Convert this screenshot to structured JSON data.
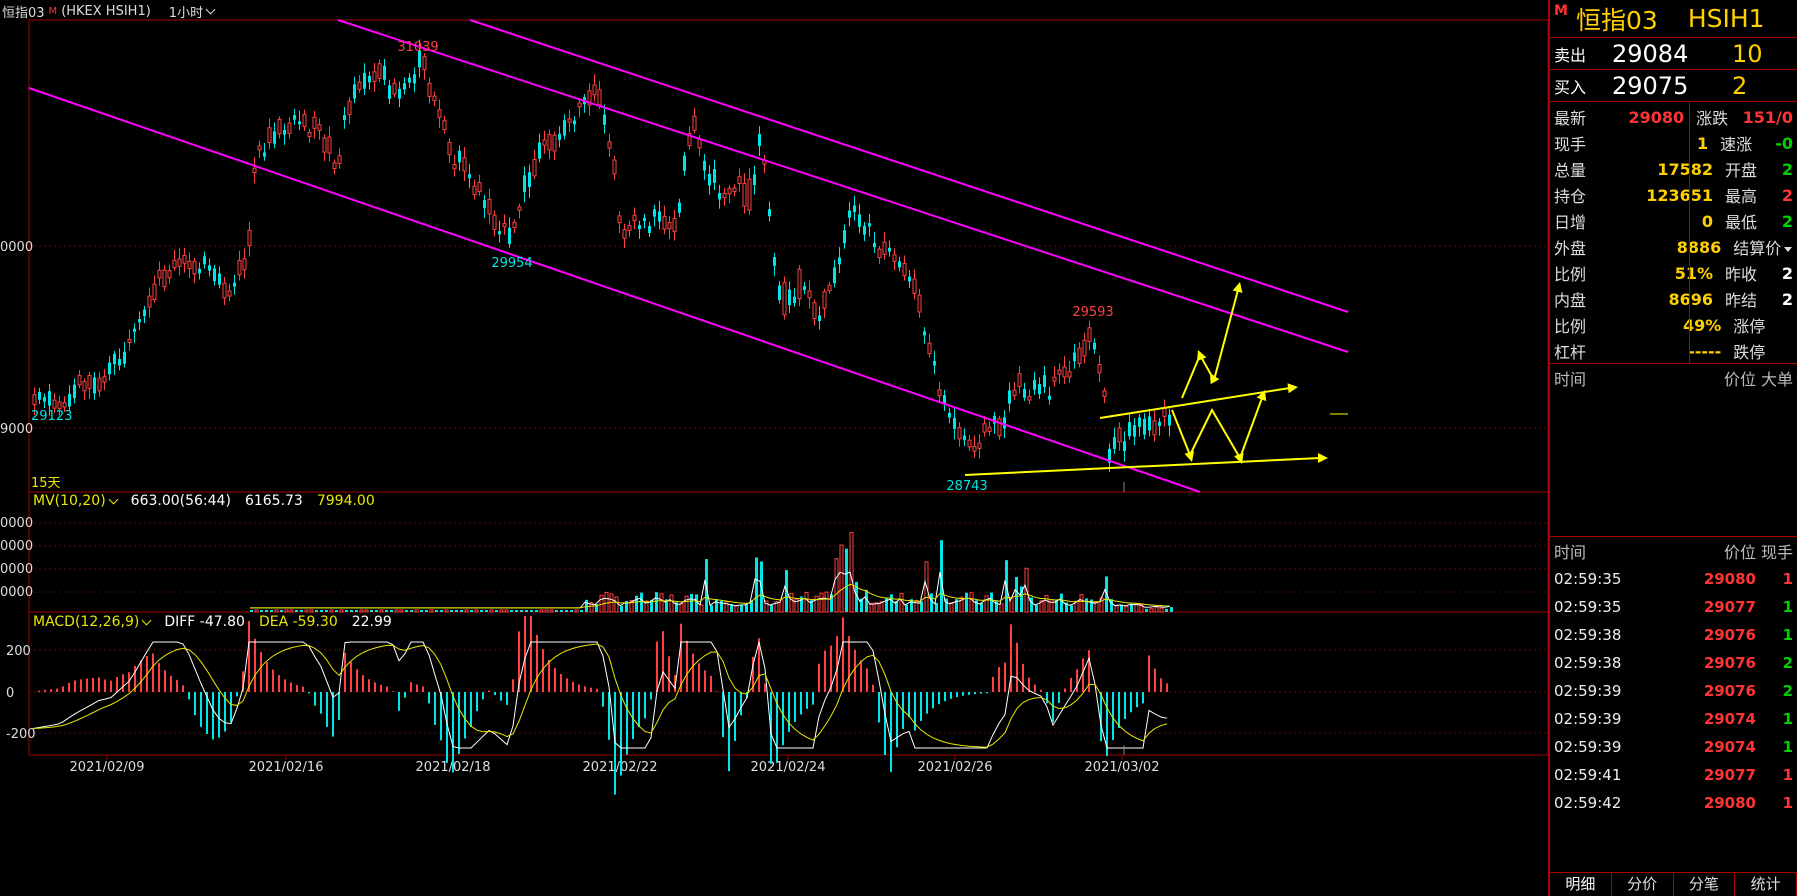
{
  "header": {
    "symbol": "恒指03",
    "mark": "M",
    "exchange_code": "(HKEX HSIH1)",
    "period": "1小时"
  },
  "chart_data": {
    "type": "candlestick",
    "x_labels": [
      "2021/02/09",
      "2021/02/16",
      "2021/02/18",
      "2021/02/22",
      "2021/02/24",
      "2021/02/26",
      "2021/03/02"
    ],
    "y_tick_labels": [
      "0000",
      "9000"
    ],
    "annotations": {
      "high_label": "31039",
      "low1_label": "29954",
      "right_high_label": "29593",
      "low2_label": "28743",
      "start_label": "29123"
    },
    "range_label": "15天",
    "volume": {
      "indicator": "MV(10,20)",
      "value1": "663.00(56:44)",
      "value2": "6165.73",
      "value3": "7994.00",
      "y_tick_labels": [
        "0000",
        "0000",
        "0000",
        "0000"
      ]
    },
    "macd": {
      "indicator": "MACD(12,26,9)",
      "diff_label": "DIFF",
      "diff": "-47.80",
      "dea_label": "DEA",
      "dea": "-59.30",
      "macd": "22.99",
      "y_tick_labels": [
        "200",
        "0",
        "-200"
      ]
    },
    "colors": {
      "up": "#ff4040",
      "down": "#00e5e5",
      "channel": "#ff00ff",
      "arrow": "#ffff00",
      "frame": "#a00000"
    }
  },
  "panel": {
    "mark": "M",
    "name": "恒指03",
    "code": "HSIH1",
    "ask": {
      "label": "卖出",
      "price": "29084",
      "qty": "10"
    },
    "bid": {
      "label": "买入",
      "price": "29075",
      "qty": "2"
    },
    "quote_rows": [
      {
        "l1": "最新",
        "v1": "29080",
        "c1": "red",
        "l2": "涨跌",
        "v2": "151/0",
        "c2": "red"
      },
      {
        "l1": "现手",
        "v1": "1",
        "c1": "yel",
        "l2": "速涨",
        "v2": "-0",
        "c2": "grn"
      },
      {
        "l1": "总量",
        "v1": "17582",
        "c1": "yel",
        "l2": "开盘",
        "v2": "2",
        "c2": "grn"
      },
      {
        "l1": "持仓",
        "v1": "123651",
        "c1": "yel",
        "l2": "最高",
        "v2": "2",
        "c2": "red"
      },
      {
        "l1": "日增",
        "v1": "0",
        "c1": "yel",
        "l2": "最低",
        "v2": "2",
        "c2": "grn"
      },
      {
        "l1": "外盘",
        "v1": "8886",
        "c1": "yel",
        "l2": "结算价",
        "v2": "",
        "c2": "wht"
      },
      {
        "l1": "比例",
        "v1": "51%",
        "c1": "yel",
        "l2": "昨收",
        "v2": "2",
        "c2": "wht"
      },
      {
        "l1": "内盘",
        "v1": "8696",
        "c1": "yel",
        "l2": "昨结",
        "v2": "2",
        "c2": "wht"
      },
      {
        "l1": "比例",
        "v1": "49%",
        "c1": "yel",
        "l2": "涨停",
        "v2": "",
        "c2": "wht"
      },
      {
        "l1": "杠杆",
        "v1": "-----",
        "c1": "yel",
        "l2": "跌停",
        "v2": "",
        "c2": "wht"
      }
    ],
    "big_orders_header": {
      "c1": "时间",
      "c2": "价位",
      "c3": "大单"
    },
    "ticks_header": {
      "c1": "时间",
      "c2": "价位",
      "c3": "现手"
    },
    "ticks": [
      {
        "t": "02:59:35",
        "p": "29080",
        "q": "1",
        "qc": "red"
      },
      {
        "t": "02:59:35",
        "p": "29077",
        "q": "1",
        "qc": "grn"
      },
      {
        "t": "02:59:38",
        "p": "29076",
        "q": "1",
        "qc": "grn"
      },
      {
        "t": "02:59:38",
        "p": "29076",
        "q": "2",
        "qc": "grn"
      },
      {
        "t": "02:59:39",
        "p": "29076",
        "q": "2",
        "qc": "grn"
      },
      {
        "t": "02:59:39",
        "p": "29074",
        "q": "1",
        "qc": "grn"
      },
      {
        "t": "02:59:39",
        "p": "29074",
        "q": "1",
        "qc": "grn"
      },
      {
        "t": "02:59:41",
        "p": "29077",
        "q": "1",
        "qc": "red"
      },
      {
        "t": "02:59:42",
        "p": "29080",
        "q": "1",
        "qc": "red"
      }
    ],
    "tabs": [
      "明细",
      "分价",
      "分笔",
      "统计"
    ]
  }
}
